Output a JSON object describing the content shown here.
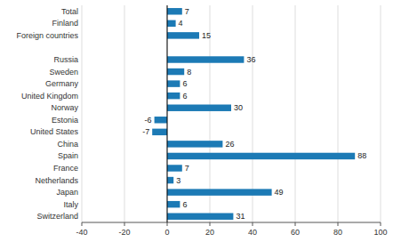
{
  "chart_data": {
    "type": "bar",
    "orientation": "horizontal",
    "categories": [
      "Total",
      "Finland",
      "Foreign countries",
      null,
      "Russia",
      "Sweden",
      "Germany",
      "United Kingdom",
      "Norway",
      "Estonia",
      "United States",
      "China",
      "Spain",
      "France",
      "Netherlands",
      "Japan",
      "Italy",
      "Switzerland"
    ],
    "values": [
      7,
      4,
      15,
      null,
      36,
      8,
      6,
      6,
      30,
      -6,
      -7,
      26,
      88,
      7,
      3,
      49,
      6,
      31
    ],
    "color": "#1c7ab5",
    "xlim": [
      -40,
      100
    ],
    "xticks": [
      -40,
      -20,
      0,
      20,
      40,
      60,
      80,
      100
    ],
    "grid": true,
    "data_labels": true
  }
}
